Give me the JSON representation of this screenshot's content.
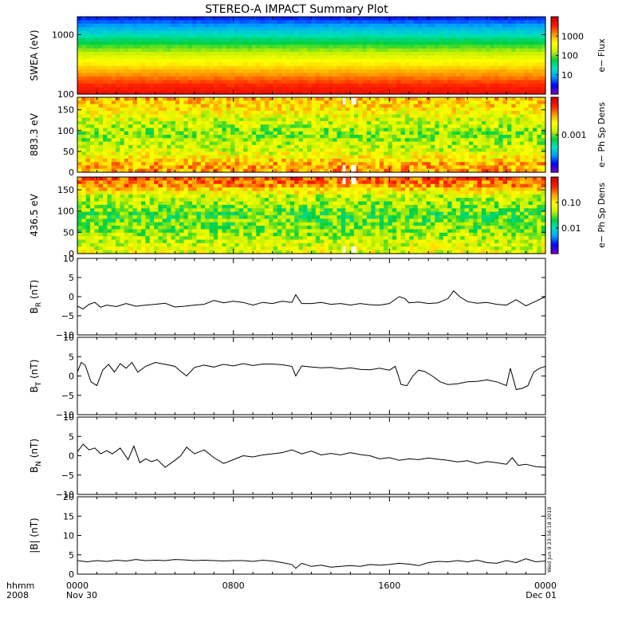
{
  "title": "STEREO-A IMPACT Summary Plot",
  "timestamp": "Wed Jun 9 23:56:18 2010",
  "x_axis": {
    "row1_label": "hhmm",
    "row2_label": "2008",
    "ticks": [
      {
        "t": 0,
        "line1": "0000",
        "line2": "Nov 30"
      },
      {
        "t": 8,
        "line1": "0800",
        "line2": ""
      },
      {
        "t": 16,
        "line1": "1600",
        "line2": ""
      },
      {
        "t": 24,
        "line1": "0000",
        "line2": "Dec 01"
      }
    ]
  },
  "colors": {
    "line": "#000000",
    "scale": [
      "#7a00c8",
      "#0000ff",
      "#00a0ff",
      "#00e0c0",
      "#00d040",
      "#c8f000",
      "#ffff00",
      "#ffa000",
      "#ff2000",
      "#d00000"
    ]
  },
  "chart_data": [
    {
      "type": "heatmap",
      "name": "swea",
      "ylabel": "SWEA (eV)",
      "yscale": "log",
      "ylim": [
        100,
        2000
      ],
      "yticks": [
        "100",
        "1000"
      ],
      "xlim": [
        0,
        24
      ],
      "colorbar": {
        "label": "e− Flux",
        "scale": "log",
        "ticks": [
          "10",
          "100",
          "1000"
        ]
      },
      "description_rows": [
        {
          "energy_eV": 2000,
          "level": 0.12
        },
        {
          "energy_eV": 1500,
          "level": 0.2
        },
        {
          "energy_eV": 1000,
          "level": 0.33
        },
        {
          "energy_eV": 700,
          "level": 0.45
        },
        {
          "energy_eV": 500,
          "level": 0.55
        },
        {
          "energy_eV": 300,
          "level": 0.7
        },
        {
          "energy_eV": 200,
          "level": 0.8
        },
        {
          "energy_eV": 130,
          "level": 0.9
        },
        {
          "energy_eV": 100,
          "level": 0.94
        }
      ]
    },
    {
      "type": "heatmap",
      "name": "pad883",
      "ylabel": "883.3 eV",
      "ylim": [
        0,
        180
      ],
      "yticks": [
        "0",
        "50",
        "100",
        "150"
      ],
      "xlim": [
        0,
        24
      ],
      "colorbar": {
        "label": "e− Ph Sp Dens",
        "scale": "log",
        "ticks": [
          "0.001"
        ]
      },
      "pitch_angle_profile": [
        {
          "angle": 0,
          "level": 0.78
        },
        {
          "angle": 20,
          "level": 0.75
        },
        {
          "angle": 45,
          "level": 0.62
        },
        {
          "angle": 90,
          "level": 0.52
        },
        {
          "angle": 135,
          "level": 0.62
        },
        {
          "angle": 160,
          "level": 0.7
        },
        {
          "angle": 180,
          "level": 0.74
        }
      ],
      "gaps_hours": [
        [
          13.6,
          13.75
        ],
        [
          14.05,
          14.3
        ]
      ]
    },
    {
      "type": "heatmap",
      "name": "pad436",
      "ylabel": "436.5 eV",
      "ylim": [
        0,
        180
      ],
      "yticks": [
        "0",
        "50",
        "100",
        "150"
      ],
      "xlim": [
        0,
        24
      ],
      "colorbar": {
        "label": "e− Ph Sp Dens",
        "scale": "log",
        "ticks": [
          "0.01",
          "0.10"
        ]
      },
      "pitch_angle_profile": [
        {
          "angle": 0,
          "level": 0.62
        },
        {
          "angle": 20,
          "level": 0.6
        },
        {
          "angle": 45,
          "level": 0.55
        },
        {
          "angle": 90,
          "level": 0.48
        },
        {
          "angle": 135,
          "level": 0.58
        },
        {
          "angle": 160,
          "level": 0.78
        },
        {
          "angle": 180,
          "level": 0.86
        }
      ],
      "gaps_hours": [
        [
          13.6,
          13.75
        ],
        [
          14.05,
          14.3
        ]
      ]
    },
    {
      "type": "line",
      "name": "br",
      "ylabel": "B_R (nT)",
      "ylabel_main": "B",
      "ylabel_sub": "R",
      "ylabel_unit": "(nT)",
      "ylim": [
        -10,
        10
      ],
      "yticks": [
        "−10",
        "−5",
        "0",
        "5",
        "10"
      ],
      "xlim": [
        0,
        24
      ],
      "x": [
        0,
        0.3,
        0.6,
        0.9,
        1.2,
        1.5,
        2,
        2.5,
        3,
        3.5,
        4,
        4.5,
        5,
        5.5,
        6,
        6.5,
        7,
        7.5,
        8,
        8.5,
        9,
        9.5,
        10,
        10.5,
        11,
        11.2,
        11.5,
        12,
        12.5,
        13,
        13.5,
        14,
        14.5,
        15,
        15.5,
        16,
        16.5,
        16.8,
        17,
        17.5,
        18,
        18.5,
        19,
        19.3,
        19.6,
        20,
        20.5,
        21,
        21.5,
        22,
        22.5,
        23,
        23.5,
        24
      ],
      "y": [
        -2.5,
        -3.2,
        -2,
        -1.5,
        -2.8,
        -2.2,
        -2.6,
        -1.8,
        -2.5,
        -2.2,
        -2,
        -1.7,
        -2.7,
        -2.5,
        -2.2,
        -2,
        -1,
        -1.6,
        -1.2,
        -1.5,
        -2.2,
        -1.5,
        -1.8,
        -1.2,
        -1.5,
        0.5,
        -1.8,
        -1.8,
        -1.5,
        -2,
        -1.8,
        -2.2,
        -1.8,
        -2.1,
        -2.2,
        -1.8,
        0,
        -0.5,
        -1.6,
        -1.4,
        -1.8,
        -1.6,
        -0.5,
        1.5,
        0,
        -1.3,
        -1.7,
        -1.5,
        -2,
        -2.2,
        -0.8,
        -2.4,
        -1.2,
        0
      ]
    },
    {
      "type": "line",
      "name": "bt",
      "ylabel": "B_T (nT)",
      "ylabel_main": "B",
      "ylabel_sub": "T",
      "ylabel_unit": "(nT)",
      "ylim": [
        -10,
        10
      ],
      "yticks": [
        "−10",
        "−5",
        "0",
        "5",
        "10"
      ],
      "xlim": [
        0,
        24
      ],
      "x": [
        0,
        0.2,
        0.4,
        0.7,
        1,
        1.3,
        1.6,
        1.9,
        2.2,
        2.5,
        2.8,
        3.1,
        3.5,
        4,
        4.5,
        5,
        5.3,
        5.6,
        6,
        6.5,
        7,
        7.5,
        8,
        8.5,
        9,
        9.5,
        10,
        10.5,
        11,
        11.2,
        11.5,
        12,
        12.5,
        13,
        13.5,
        14,
        14.5,
        15,
        15.5,
        16,
        16.3,
        16.6,
        16.9,
        17.2,
        17.5,
        17.8,
        18.2,
        18.6,
        19,
        19.5,
        20,
        20.5,
        21,
        21.5,
        22,
        22.2,
        22.5,
        22.8,
        23.1,
        23.4,
        23.7,
        24
      ],
      "y": [
        1,
        3.5,
        2.8,
        -1.5,
        -2.5,
        1.5,
        3,
        1,
        3.2,
        2,
        3.5,
        1,
        2.5,
        3.5,
        3,
        2.5,
        1.2,
        0,
        2.2,
        2.8,
        2.3,
        3,
        2.6,
        3.2,
        2.7,
        3.1,
        3.1,
        2.9,
        2.5,
        0,
        2.6,
        2.3,
        2.1,
        2.2,
        1.8,
        2.1,
        1.7,
        1.6,
        2,
        1.5,
        2.5,
        -2.2,
        -2.5,
        0,
        1.5,
        1.2,
        0,
        -1.5,
        -2.2,
        -2,
        -1.5,
        -1.4,
        -1,
        -1.5,
        -2.5,
        2,
        -3.5,
        -3.2,
        -2.5,
        1,
        2,
        2.5
      ]
    },
    {
      "type": "line",
      "name": "bn",
      "ylabel": "B_N (nT)",
      "ylabel_main": "B",
      "ylabel_sub": "N",
      "ylabel_unit": "(nT)",
      "ylim": [
        -10,
        10
      ],
      "yticks": [
        "−10",
        "−5",
        "0",
        "5",
        "10"
      ],
      "xlim": [
        0,
        24
      ],
      "x": [
        0,
        0.3,
        0.6,
        0.9,
        1.2,
        1.5,
        1.8,
        2.2,
        2.6,
        2.9,
        3.2,
        3.5,
        3.8,
        4.1,
        4.5,
        5,
        5.3,
        5.6,
        6,
        6.5,
        7,
        7.5,
        8,
        8.5,
        9,
        9.5,
        10,
        10.5,
        11,
        11.5,
        12,
        12.5,
        13,
        13.5,
        14,
        14.5,
        15,
        15.5,
        16,
        16.5,
        17,
        17.5,
        18,
        18.5,
        19,
        19.5,
        20,
        20.5,
        21,
        21.5,
        22,
        22.3,
        22.6,
        23,
        23.5,
        24
      ],
      "y": [
        1,
        3,
        1.5,
        2,
        0.5,
        1.3,
        0.5,
        2,
        -1,
        2.5,
        -1.8,
        -0.8,
        -1.5,
        -1,
        -3,
        -1.2,
        0,
        2.2,
        0.5,
        1.5,
        -0.5,
        -2,
        -1,
        0,
        -0.3,
        0.2,
        0.5,
        0.8,
        1.5,
        0.5,
        1.2,
        0.2,
        0.6,
        0.2,
        0.8,
        0.3,
        0,
        -0.8,
        -0.5,
        -1.2,
        -0.8,
        -1,
        -0.6,
        -0.9,
        -1.2,
        -1.6,
        -1.3,
        -2,
        -1.5,
        -1.8,
        -2.2,
        -0.5,
        -2.5,
        -2.2,
        -2.8,
        -3
      ]
    },
    {
      "type": "line",
      "name": "bmag",
      "ylabel": "|B| (nT)",
      "ylabel_main": "|B|",
      "ylabel_sub": "",
      "ylabel_unit": "(nT)",
      "ylim": [
        0,
        20
      ],
      "yticks": [
        "0",
        "5",
        "10",
        "15",
        "20"
      ],
      "xlim": [
        0,
        24
      ],
      "x": [
        0,
        0.5,
        1,
        1.5,
        2,
        2.5,
        3,
        3.5,
        4,
        4.5,
        5,
        5.5,
        6,
        6.5,
        7,
        7.5,
        8,
        8.5,
        9,
        9.5,
        10,
        10.5,
        11,
        11.2,
        11.5,
        12,
        12.5,
        13,
        13.5,
        14,
        14.5,
        15,
        15.5,
        16,
        16.5,
        17,
        17.5,
        18,
        18.5,
        19,
        19.5,
        20,
        20.5,
        21,
        21.5,
        22,
        22.5,
        23,
        23.5,
        24
      ],
      "y": [
        3.5,
        3.2,
        3.5,
        3.3,
        3.6,
        3.4,
        3.8,
        3.5,
        3.6,
        3.5,
        3.8,
        3.7,
        3.5,
        3.6,
        3.5,
        3.4,
        3.5,
        3.5,
        3.3,
        3.6,
        3.4,
        3,
        2.5,
        1.5,
        2.8,
        2,
        2.3,
        1.8,
        2,
        2.2,
        2,
        2.5,
        2.3,
        2.5,
        2.8,
        2.6,
        2.2,
        3,
        3.3,
        3.2,
        3.5,
        3.2,
        3.6,
        3,
        2.8,
        3.5,
        3,
        4,
        3.2,
        3.4
      ]
    }
  ]
}
